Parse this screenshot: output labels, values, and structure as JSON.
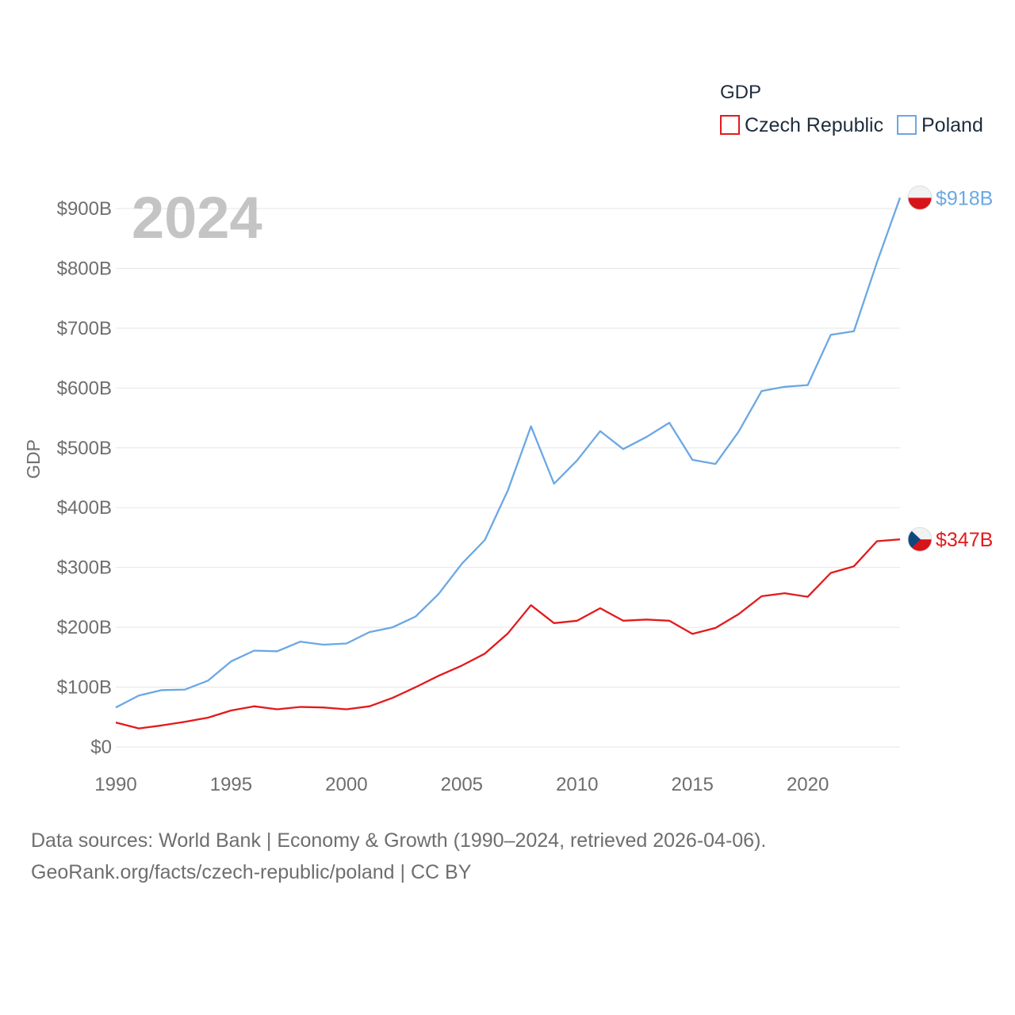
{
  "chart_data": {
    "type": "line",
    "title": "",
    "year_label": "2024",
    "ylabel": "GDP",
    "xlabel": "",
    "xlim": [
      1990,
      2024
    ],
    "ylim": [
      0,
      900
    ],
    "x_ticks": [
      1990,
      1995,
      2000,
      2005,
      2010,
      2015,
      2020
    ],
    "y_ticks": [
      {
        "value": 0,
        "label": "$0"
      },
      {
        "value": 100,
        "label": "$100B"
      },
      {
        "value": 200,
        "label": "$200B"
      },
      {
        "value": 300,
        "label": "$300B"
      },
      {
        "value": 400,
        "label": "$400B"
      },
      {
        "value": 500,
        "label": "$500B"
      },
      {
        "value": 600,
        "label": "$600B"
      },
      {
        "value": 700,
        "label": "$700B"
      },
      {
        "value": 800,
        "label": "$800B"
      },
      {
        "value": 900,
        "label": "$900B"
      }
    ],
    "legend": {
      "title": "GDP",
      "position": "top-right"
    },
    "x": [
      1990,
      1991,
      1992,
      1993,
      1994,
      1995,
      1996,
      1997,
      1998,
      1999,
      2000,
      2001,
      2002,
      2003,
      2004,
      2005,
      2006,
      2007,
      2008,
      2009,
      2010,
      2011,
      2012,
      2013,
      2014,
      2015,
      2016,
      2017,
      2018,
      2019,
      2020,
      2021,
      2022,
      2023,
      2024
    ],
    "series": [
      {
        "name": "Czech Republic",
        "color": "#e31a1c",
        "flag": "czech-flag",
        "end_label": "$347B",
        "values": [
          41,
          31,
          36,
          42,
          49,
          61,
          68,
          63,
          67,
          66,
          63,
          68,
          82,
          100,
          119,
          136,
          156,
          190,
          237,
          207,
          211,
          232,
          211,
          213,
          211,
          189,
          199,
          222,
          252,
          257,
          251,
          291,
          302,
          344,
          347
        ]
      },
      {
        "name": "Poland",
        "color": "#6aa8e4",
        "flag": "poland-flag",
        "end_label": "$918B",
        "values": [
          66,
          86,
          95,
          96,
          111,
          143,
          161,
          160,
          176,
          171,
          173,
          192,
          200,
          218,
          256,
          306,
          346,
          429,
          536,
          440,
          479,
          528,
          498,
          518,
          542,
          480,
          473,
          527,
          595,
          602,
          605,
          689,
          695,
          810,
          918
        ]
      }
    ],
    "grid": true
  },
  "footer": {
    "line1": "Data sources: World Bank | Economy & Growth (1990–2024, retrieved 2026-04-06).",
    "line2": "GeoRank.org/facts/czech-republic/poland | CC BY"
  }
}
